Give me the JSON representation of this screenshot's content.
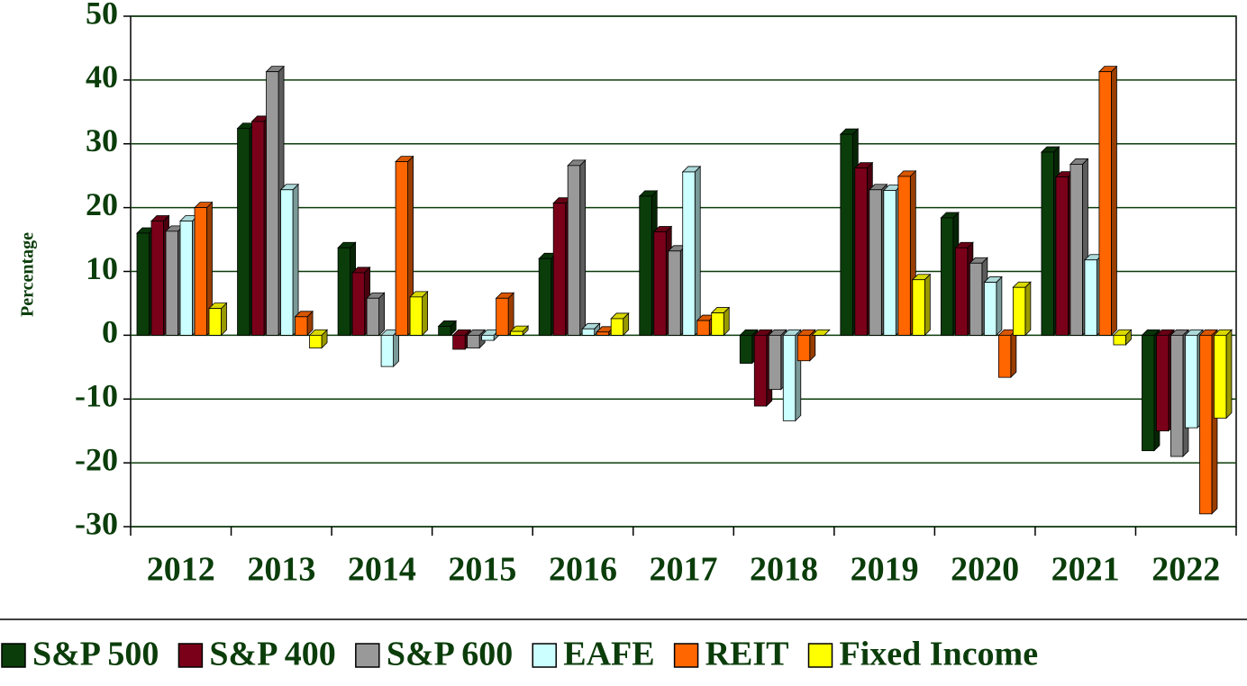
{
  "chart_data": {
    "type": "bar",
    "y_label": "Percentage",
    "categories": [
      "2012",
      "2013",
      "2014",
      "2015",
      "2016",
      "2017",
      "2018",
      "2019",
      "2020",
      "2021",
      "2022"
    ],
    "series": [
      {
        "name": "S&P 500",
        "color": "#0a3d0a",
        "values": [
          16,
          32.4,
          13.7,
          1.4,
          12,
          21.8,
          -4.4,
          31.5,
          18.4,
          28.7,
          -18.1
        ]
      },
      {
        "name": "S&P 400",
        "color": "#7a0019",
        "values": [
          17.9,
          33.5,
          9.8,
          -2.2,
          20.7,
          16.2,
          -11.1,
          26.2,
          13.7,
          24.8,
          -15
        ]
      },
      {
        "name": "S&P 600",
        "color": "#999999",
        "values": [
          16.3,
          41.3,
          5.8,
          -2,
          26.6,
          13.2,
          -8.5,
          22.8,
          11.3,
          26.8,
          -19
        ]
      },
      {
        "name": "EAFE",
        "color": "#ccffff",
        "values": [
          17.9,
          22.8,
          -4.9,
          -0.8,
          1.0,
          25.6,
          -13.4,
          22.7,
          8.3,
          11.8,
          -14.5
        ]
      },
      {
        "name": "REIT",
        "color": "#ff6600",
        "values": [
          20,
          2.9,
          27.2,
          5.8,
          0.5,
          2.3,
          -4,
          24.9,
          -6.6,
          41.3,
          -28
        ]
      },
      {
        "name": "Fixed Income",
        "color": "#ffff00",
        "values": [
          4.2,
          -2,
          6,
          0.6,
          2.6,
          3.5,
          0,
          8.7,
          7.5,
          -1.5,
          -13
        ]
      }
    ],
    "ylim": [
      -30,
      50
    ],
    "yticks": [
      -30,
      -20,
      -10,
      0,
      10,
      20,
      30,
      40,
      50
    ],
    "grid": true
  }
}
